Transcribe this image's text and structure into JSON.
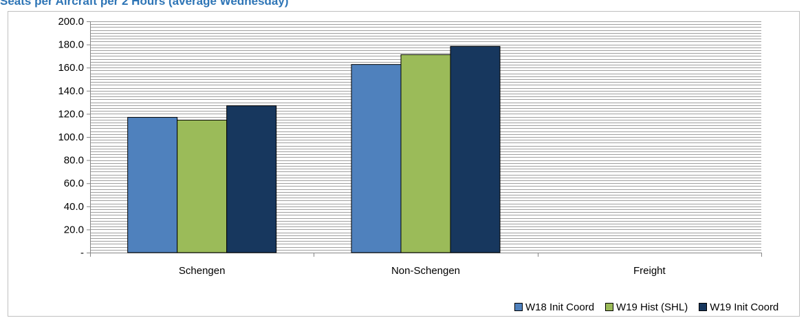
{
  "title": "Seats per Aircraft per 2 Hours (average Wednesday)",
  "chart_data": {
    "type": "bar",
    "categories": [
      "Schengen",
      "Non-Schengen",
      "Freight"
    ],
    "series": [
      {
        "name": "W18 Init Coord",
        "color": "#4F81BD",
        "values": [
          117.0,
          162.7,
          null
        ]
      },
      {
        "name": "W19 Hist (SHL)",
        "color": "#9BBB59",
        "values": [
          114.6,
          171.2,
          null
        ]
      },
      {
        "name": "W19 Init Coord",
        "color": "#17375E",
        "values": [
          127.0,
          178.4,
          null
        ]
      }
    ],
    "ylim": [
      0,
      200
    ],
    "yticks": [
      "-",
      "20.0",
      "40.0",
      "60.0",
      "80.0",
      "100.0",
      "120.0",
      "140.0",
      "160.0",
      "180.0",
      "200.0"
    ],
    "grid": true,
    "legend_position": "bottom-right"
  }
}
